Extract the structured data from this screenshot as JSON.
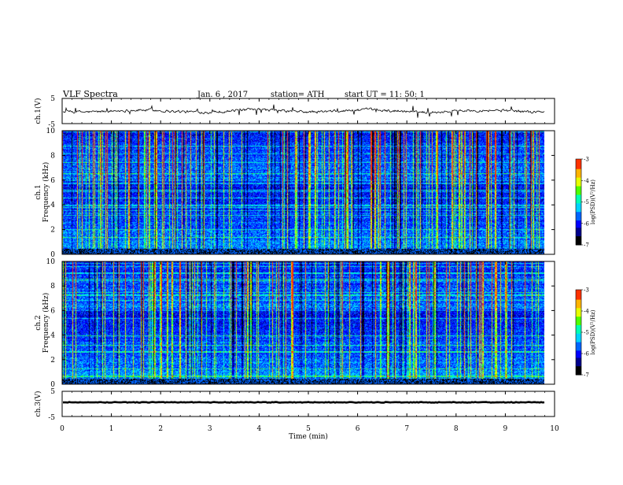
{
  "header": {
    "title": "VLF  Spectra",
    "date": "Jan.  6  , 2017",
    "station": "station= ATH",
    "start": "start  UT  =   11: 50: 1"
  },
  "chart_data": [
    {
      "type": "line",
      "name": "ch1-waveform",
      "ylabel": "ch.1(V)",
      "ylim": [
        -5,
        5
      ],
      "yticks": [
        "5",
        "-5"
      ],
      "x_range_min": [
        0,
        9.8
      ]
    },
    {
      "type": "heatmap",
      "name": "ch1-spectrogram",
      "ylabel": "Frequency (kHz)",
      "ylabel_prefix": "ch.1",
      "ylim": [
        0,
        10
      ],
      "yticks": [
        "0",
        "2",
        "4",
        "6",
        "8",
        "10"
      ],
      "colorbar": {
        "label": "log(PSD)(V²/Hz)",
        "range": [
          -7,
          -3
        ],
        "ticks": [
          "-3",
          "-4",
          "-5",
          "-6",
          "-7"
        ]
      }
    },
    {
      "type": "heatmap",
      "name": "ch2-spectrogram",
      "ylabel": "Frequency (kHz)",
      "ylabel_prefix": "ch.2",
      "ylim": [
        0,
        10
      ],
      "yticks": [
        "0",
        "2",
        "4",
        "6",
        "8",
        "10"
      ],
      "colorbar": {
        "label": "log(PSD)(V²/Hz)",
        "range": [
          -7,
          -3
        ],
        "ticks": [
          "-3",
          "-4",
          "-5",
          "-6",
          "-7"
        ]
      }
    },
    {
      "type": "line",
      "name": "ch3-waveform",
      "ylabel": "ch.3(V)",
      "ylim": [
        -5,
        5
      ],
      "yticks": [
        "5",
        "-5"
      ]
    }
  ],
  "xaxis": {
    "label": "Time  (min)",
    "range": [
      0,
      10
    ],
    "ticks": [
      "0",
      "1",
      "2",
      "3",
      "4",
      "5",
      "6",
      "7",
      "8",
      "9",
      "10"
    ]
  },
  "colors": {
    "background": "#ffffff",
    "axis": "#000000",
    "trace": "#000000",
    "colormap": [
      "#000000",
      "#00008c",
      "#0000ff",
      "#0064ff",
      "#00d2ff",
      "#00ffb4",
      "#50ff00",
      "#e6ff00",
      "#ffb400",
      "#ff3200",
      "#ffffff"
    ]
  }
}
